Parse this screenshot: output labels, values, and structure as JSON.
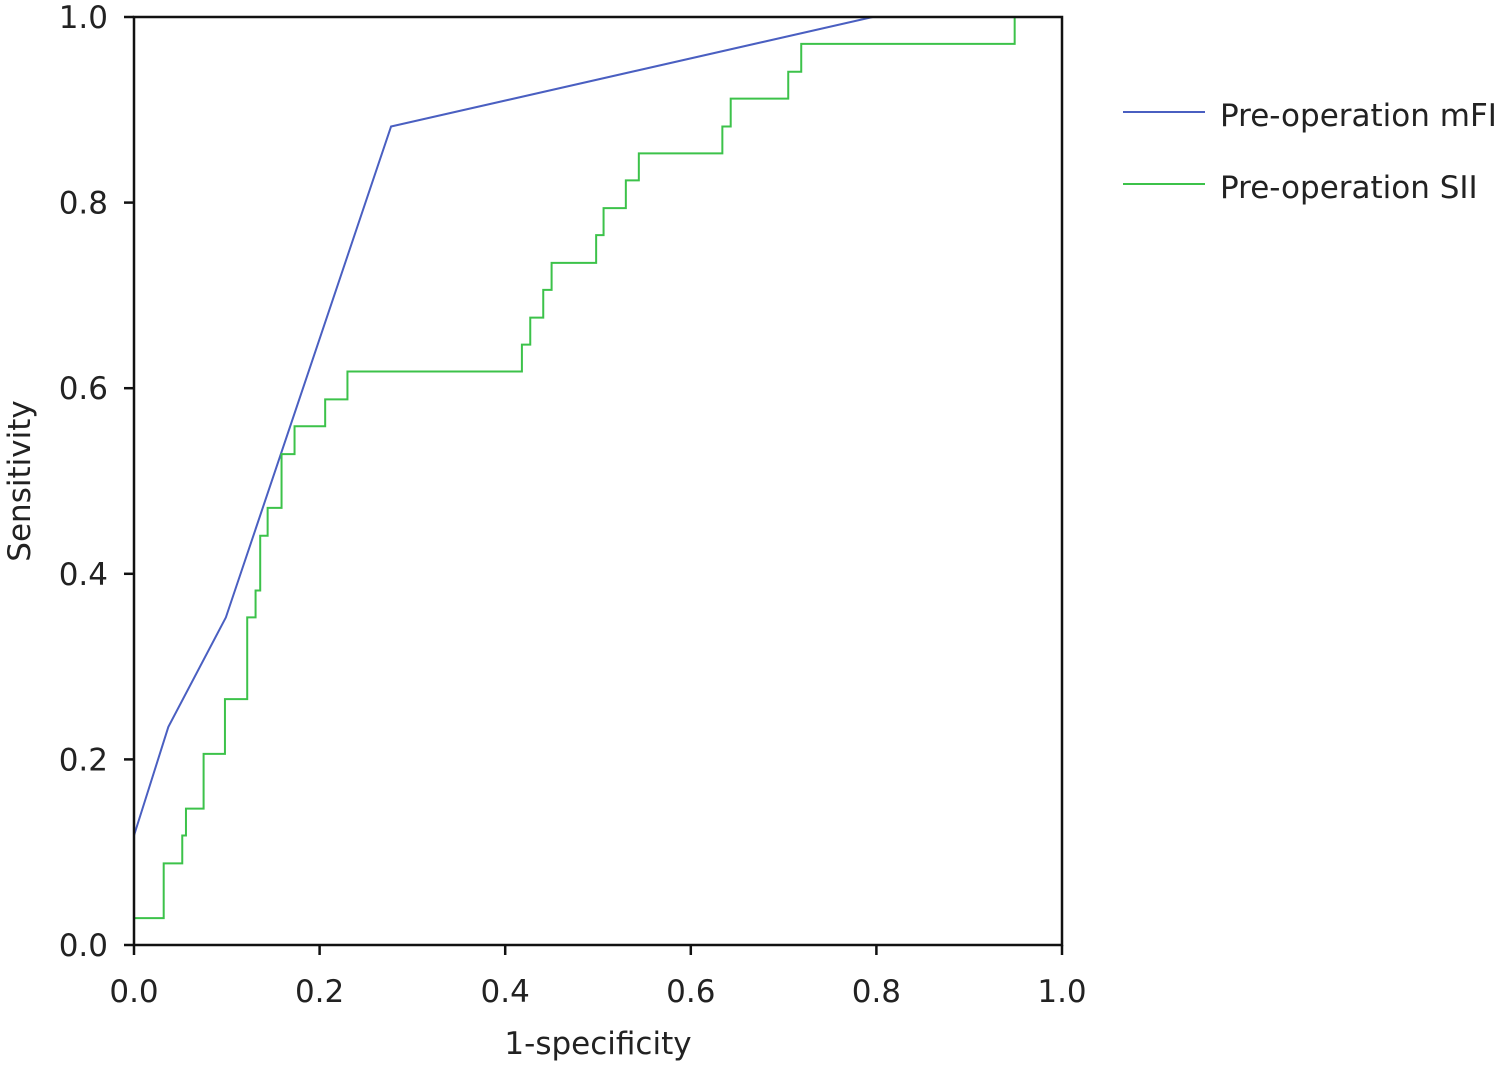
{
  "chart_data": {
    "type": "line",
    "title": "",
    "xlabel": "1-specificity",
    "ylabel": "Sensitivity",
    "xlim": [
      0,
      1
    ],
    "ylim": [
      0,
      1
    ],
    "xticks": [
      "0.0",
      "0.2",
      "0.4",
      "0.6",
      "0.8",
      "1.0"
    ],
    "yticks": [
      "0.0",
      "0.2",
      "0.4",
      "0.6",
      "0.8",
      "1.0"
    ],
    "grid": false,
    "legend_position": "right",
    "series": [
      {
        "name": "Pre-operation mFI",
        "color": "#4a5fc1",
        "x": [
          0,
          0.037,
          0.099,
          0.277,
          0.796,
          1.0
        ],
        "y": [
          0.118,
          0.235,
          0.353,
          0.882,
          1.0,
          1.0
        ]
      },
      {
        "name": "Pre-operation SII",
        "color": "#3cc24a",
        "step": true,
        "x": [
          0,
          0.032,
          0.052,
          0.056,
          0.075,
          0.098,
          0.122,
          0.131,
          0.136,
          0.144,
          0.159,
          0.173,
          0.206,
          0.23,
          0.418,
          0.427,
          0.441,
          0.45,
          0.498,
          0.506,
          0.53,
          0.544,
          0.634,
          0.643,
          0.705,
          0.719,
          0.949,
          1.0
        ],
        "y": [
          0.029,
          0.088,
          0.118,
          0.147,
          0.206,
          0.265,
          0.353,
          0.382,
          0.441,
          0.471,
          0.529,
          0.559,
          0.588,
          0.618,
          0.647,
          0.676,
          0.706,
          0.735,
          0.765,
          0.794,
          0.824,
          0.853,
          0.882,
          0.912,
          0.941,
          0.971,
          1.0,
          1.0
        ]
      }
    ]
  }
}
